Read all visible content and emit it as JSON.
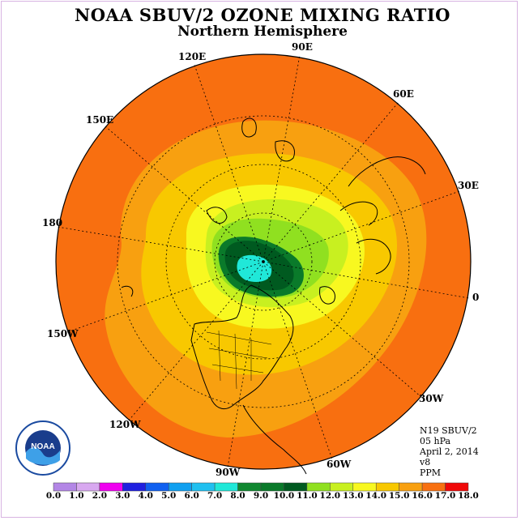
{
  "header": {
    "title": "NOAA SBUV/2 OZONE MIXING RATIO",
    "subtitle": "Northern Hemisphere"
  },
  "longitude_labels": [
    "90E",
    "60E",
    "30E",
    "0",
    "30W",
    "60W",
    "90W",
    "120W",
    "150W",
    "180",
    "150E",
    "120E"
  ],
  "info": {
    "satellite": "N19 SBUV/2",
    "level": "05 hPa",
    "date": "April 2, 2014",
    "version": "v8",
    "units": "PPM"
  },
  "logo": {
    "text": "NOAA",
    "icon": "noaa-logo-icon"
  },
  "colorbar": {
    "ticks": [
      "0.0",
      "1.0",
      "2.0",
      "3.0",
      "4.0",
      "5.0",
      "6.0",
      "7.0",
      "8.0",
      "9.0",
      "10.0",
      "11.0",
      "12.0",
      "13.0",
      "14.0",
      "15.0",
      "16.0",
      "17.0",
      "18.0"
    ],
    "colors": [
      "#b386e6",
      "#d8a8f0",
      "#f000f0",
      "#2020e0",
      "#1060f0",
      "#10a0f0",
      "#20c0f0",
      "#20e8d8",
      "#108830",
      "#0a7a2a",
      "#005a20",
      "#90e020",
      "#c8f020",
      "#f8f820",
      "#f8c800",
      "#f8a010",
      "#f87010",
      "#f00808",
      "#7a5030"
    ]
  },
  "map_colors": {
    "outer": "#f86f10",
    "band15": "#f8a010",
    "band14": "#f8c800",
    "band13": "#f8f820",
    "band12": "#c8f020",
    "band11": "#90e020",
    "band10": "#0a7a2a",
    "band9": "#005a20",
    "center": "#20e8d8"
  }
}
